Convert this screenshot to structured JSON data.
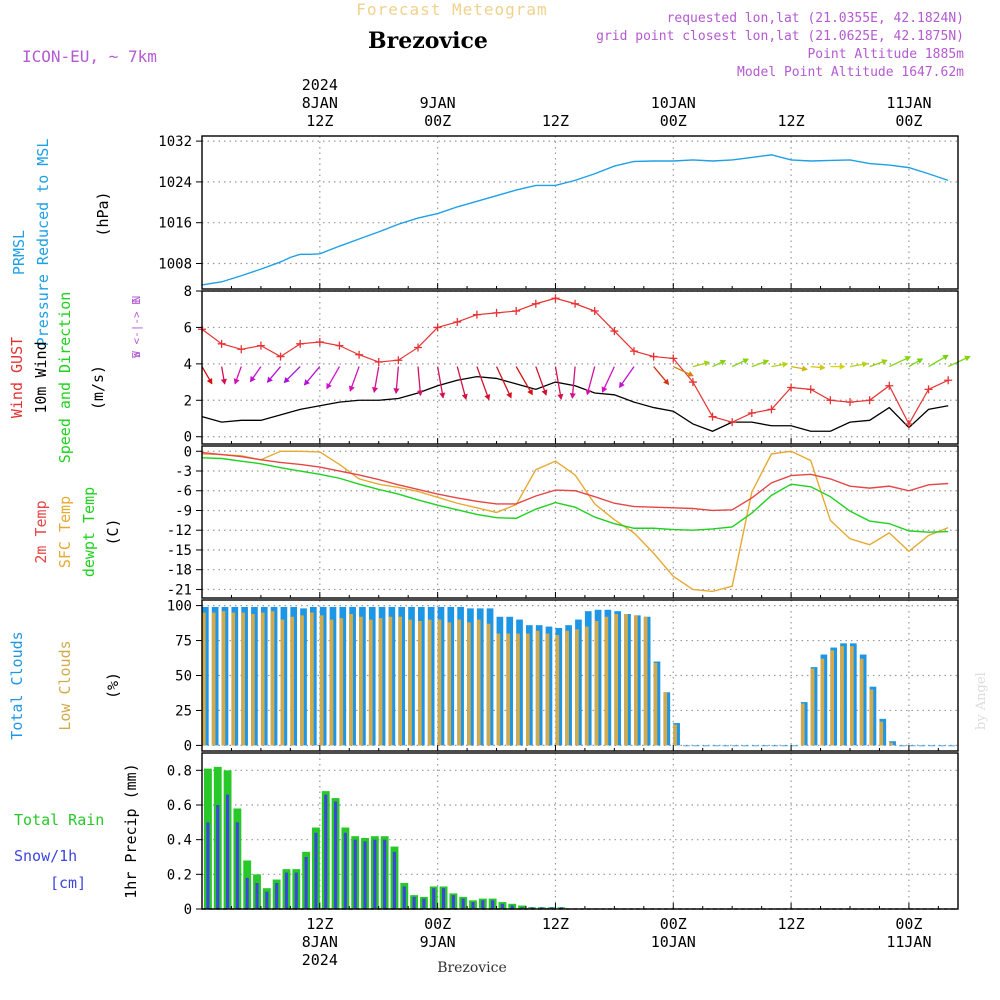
{
  "header": {
    "title": "Forecast Meteogram",
    "station": "Brezovice",
    "model": "ICON-EU, ~ 7km",
    "requested": "requested lon,lat (21.0355E, 42.1824N)",
    "gridpoint": "grid point closest lon,lat (21.0625E, 42.1875N)",
    "altitude": "Point Altitude 1885m",
    "model_altitude": "Model Point Altitude 1647.62m",
    "footer": "Brezovice",
    "credit": "by Angel"
  },
  "colors": {
    "pressure": "#1ea0e6",
    "gust": "#e63232",
    "wind": "#000000",
    "temp": "#e64646",
    "sfc": "#e6aa32",
    "dewpt": "#1ed21e",
    "total_clouds": "#1e96e6",
    "low_clouds": "#d2aa4b",
    "rain": "#28c828",
    "snow": "#3c46dc",
    "purple": "#b45ad2"
  },
  "time_axis": {
    "top_labels": [
      {
        "t": 12,
        "lines": [
          "2024",
          "8JAN",
          "12Z"
        ]
      },
      {
        "t": 24,
        "lines": [
          "9JAN",
          "00Z"
        ]
      },
      {
        "t": 36,
        "lines": [
          "12Z"
        ]
      },
      {
        "t": 48,
        "lines": [
          "10JAN",
          "00Z"
        ]
      },
      {
        "t": 60,
        "lines": [
          "12Z"
        ]
      },
      {
        "t": 72,
        "lines": [
          "11JAN",
          "00Z"
        ]
      }
    ],
    "bottom_labels": [
      {
        "t": 12,
        "lines": [
          "12Z",
          "8JAN",
          "2024"
        ]
      },
      {
        "t": 24,
        "lines": [
          "00Z",
          "9JAN"
        ]
      },
      {
        "t": 36,
        "lines": [
          "12Z"
        ]
      },
      {
        "t": 48,
        "lines": [
          "00Z",
          "10JAN"
        ]
      },
      {
        "t": 60,
        "lines": [
          "12Z"
        ]
      },
      {
        "t": 72,
        "lines": [
          "00Z",
          "11JAN"
        ]
      }
    ]
  },
  "chart_data": [
    {
      "type": "line",
      "id": "pressure",
      "ylabel": [
        "PRMSL",
        "Pressure Reduced to MSL",
        "(hPa)"
      ],
      "yticks": [
        1008,
        1016,
        1024,
        1032
      ],
      "ylim": [
        1003,
        1033
      ],
      "x": [
        0,
        2,
        4,
        6,
        8,
        9,
        10,
        11,
        12,
        14,
        16,
        18,
        20,
        22,
        24,
        26,
        28,
        30,
        32,
        34,
        36,
        38,
        40,
        42,
        44,
        46,
        48,
        50,
        52,
        54,
        56,
        58,
        60,
        62,
        64,
        66,
        68,
        70,
        72,
        74,
        76
      ],
      "series": [
        {
          "name": "PRMSL",
          "values": [
            1003.8,
            1004.4,
            1005.6,
            1006.9,
            1008.3,
            1009.2,
            1009.8,
            1009.8,
            1009.9,
            1011.4,
            1012.8,
            1014.2,
            1015.7,
            1016.9,
            1017.8,
            1019.1,
            1020.2,
            1021.3,
            1022.4,
            1023.3,
            1023.3,
            1024.3,
            1025.6,
            1027.1,
            1028.0,
            1028.1,
            1028.1,
            1028.3,
            1028.1,
            1028.3,
            1028.8,
            1029.3,
            1028.3,
            1028.1,
            1028.2,
            1028.3,
            1027.6,
            1027.3,
            1026.8,
            1025.6,
            1024.3
          ]
        }
      ]
    },
    {
      "type": "line",
      "id": "wind",
      "ylabel": [
        "Wind GUST",
        "10m Wind",
        "Speed and Direction",
        "(m/s)"
      ],
      "compass": [
        "N",
        "W <-|-> E",
        "S"
      ],
      "yticks": [
        0,
        2,
        4,
        6,
        8
      ],
      "ylim": [
        -0.4,
        8.0
      ],
      "x": [
        0,
        2,
        4,
        6,
        8,
        10,
        12,
        14,
        16,
        18,
        20,
        22,
        24,
        26,
        28,
        30,
        32,
        34,
        36,
        38,
        40,
        42,
        44,
        46,
        48,
        50,
        52,
        54,
        56,
        58,
        60,
        62,
        64,
        66,
        68,
        70,
        72,
        74,
        76
      ],
      "series": [
        {
          "name": "Wind GUST",
          "values": [
            5.9,
            5.1,
            4.8,
            5.0,
            4.4,
            5.1,
            5.2,
            5.0,
            4.5,
            4.1,
            4.2,
            4.9,
            6.0,
            6.3,
            6.7,
            6.8,
            6.9,
            7.3,
            7.6,
            7.3,
            6.9,
            5.8,
            4.7,
            4.4,
            4.3,
            3.0,
            1.1,
            0.8,
            1.3,
            1.5,
            2.7,
            2.6,
            2.0,
            1.9,
            2.0,
            2.8,
            0.7,
            2.6,
            3.1
          ]
        },
        {
          "name": "10m Wind",
          "values": [
            1.1,
            0.8,
            0.9,
            0.9,
            1.2,
            1.5,
            1.7,
            1.9,
            2.0,
            2.0,
            2.1,
            2.4,
            2.8,
            3.1,
            3.3,
            3.2,
            2.9,
            2.6,
            3.0,
            2.8,
            2.4,
            2.3,
            1.9,
            1.6,
            1.4,
            0.7,
            0.3,
            0.8,
            0.8,
            0.6,
            0.6,
            0.3,
            0.3,
            0.8,
            0.9,
            1.6,
            0.5,
            1.5,
            1.7
          ]
        }
      ],
      "arrows": {
        "x": [
          0,
          2,
          4,
          6,
          8,
          10,
          12,
          14,
          16,
          18,
          20,
          22,
          24,
          26,
          28,
          30,
          32,
          34,
          36,
          38,
          40,
          42,
          44,
          46,
          48,
          50,
          52,
          54,
          56,
          58,
          60,
          62,
          64,
          66,
          68,
          70,
          72,
          74,
          76
        ],
        "speed": [
          1.1,
          0.8,
          0.9,
          0.9,
          1.2,
          1.5,
          1.7,
          1.9,
          2.0,
          2.0,
          2.1,
          2.4,
          2.8,
          3.1,
          3.3,
          3.2,
          2.9,
          2.6,
          3.0,
          2.8,
          2.4,
          2.3,
          1.9,
          1.6,
          1.4,
          0.7,
          0.3,
          0.8,
          0.8,
          0.6,
          0.6,
          0.3,
          0.3,
          0.8,
          0.9,
          1.6,
          0.5,
          1.5,
          1.7
        ],
        "to_dir_deg": [
          150,
          170,
          200,
          215,
          220,
          225,
          220,
          210,
          200,
          190,
          185,
          175,
          170,
          165,
          160,
          155,
          150,
          160,
          170,
          185,
          195,
          205,
          215,
          140,
          115,
          75,
          65,
          65,
          70,
          80,
          100,
          95,
          90,
          80,
          70,
          65,
          60,
          60,
          65
        ]
      }
    },
    {
      "type": "line",
      "id": "temperature",
      "ylabel": [
        "2m Temp",
        "SFC Temp",
        "dewpt Temp",
        "(C)"
      ],
      "yticks": [
        0,
        -3,
        -6,
        -9,
        -12,
        -15,
        -18,
        -21
      ],
      "ylim": [
        -22.3,
        0.8
      ],
      "x": [
        0,
        2,
        4,
        6,
        8,
        10,
        12,
        14,
        16,
        18,
        20,
        22,
        24,
        26,
        28,
        30,
        32,
        34,
        36,
        38,
        40,
        42,
        44,
        46,
        48,
        50,
        52,
        54,
        56,
        58,
        60,
        62,
        64,
        66,
        68,
        70,
        72,
        74,
        76
      ],
      "series": [
        {
          "name": "2m Temp",
          "values": [
            -0.2,
            -0.5,
            -0.8,
            -1.3,
            -1.7,
            -2.0,
            -2.4,
            -3.0,
            -3.6,
            -4.3,
            -5.1,
            -5.8,
            -6.5,
            -7.1,
            -7.6,
            -8.0,
            -8.0,
            -6.8,
            -5.9,
            -6.0,
            -6.9,
            -7.9,
            -8.4,
            -8.5,
            -8.6,
            -8.7,
            -9.0,
            -8.9,
            -7.1,
            -4.8,
            -3.7,
            -3.5,
            -4.2,
            -5.3,
            -5.6,
            -5.3,
            -6.0,
            -5.1,
            -4.9
          ]
        },
        {
          "name": "SFC Temp",
          "values": [
            -0.4,
            -0.5,
            -0.7,
            -1.3,
            0.0,
            0.0,
            -0.1,
            -2.0,
            -4.2,
            -5.0,
            -5.5,
            -6.1,
            -7.0,
            -7.9,
            -8.6,
            -9.3,
            -8.1,
            -2.8,
            -1.5,
            -3.6,
            -8.0,
            -10.4,
            -12.4,
            -15.5,
            -19.0,
            -21.0,
            -21.3,
            -20.5,
            -6.2,
            -0.4,
            0.0,
            -1.4,
            -10.5,
            -13.3,
            -14.2,
            -12.4,
            -15.2,
            -12.8,
            -11.6
          ]
        },
        {
          "name": "dewpt Temp",
          "values": [
            -1.0,
            -1.1,
            -1.5,
            -1.9,
            -2.5,
            -3.0,
            -3.5,
            -4.1,
            -5.0,
            -5.8,
            -6.5,
            -7.4,
            -8.2,
            -8.9,
            -9.6,
            -10.1,
            -10.2,
            -8.8,
            -7.8,
            -8.5,
            -10.0,
            -11.0,
            -11.7,
            -11.7,
            -11.9,
            -12.0,
            -11.8,
            -11.5,
            -9.4,
            -6.7,
            -5.0,
            -5.4,
            -6.9,
            -9.1,
            -10.6,
            -11.0,
            -12.1,
            -12.3,
            -12.2
          ]
        }
      ]
    },
    {
      "type": "bar",
      "id": "clouds",
      "ylabel": [
        "Total Clouds",
        "Low Clouds",
        "(%)"
      ],
      "yticks": [
        0,
        25,
        50,
        75,
        100
      ],
      "ylim": [
        -4,
        104
      ],
      "x_start": 0,
      "x_step": 1,
      "series": [
        {
          "name": "Total Clouds",
          "values": [
            99,
            99,
            99,
            99,
            99,
            99,
            99,
            99,
            99,
            99,
            98,
            99,
            99,
            99,
            99,
            99,
            99,
            99,
            99,
            99,
            99,
            99,
            99,
            99,
            99,
            99,
            99,
            98,
            98,
            98,
            92,
            92,
            90,
            86,
            86,
            85,
            84,
            86,
            90,
            96,
            97,
            97,
            96,
            94,
            93,
            92,
            60,
            38,
            16,
            0,
            0,
            0,
            0,
            0,
            0,
            0,
            0,
            0,
            0,
            0,
            0,
            31,
            56,
            65,
            70,
            73,
            73,
            65,
            42,
            19,
            3,
            0,
            0,
            0,
            0,
            0,
            0
          ]
        },
        {
          "name": "Low Clouds",
          "values": [
            95,
            95,
            96,
            95,
            95,
            94,
            95,
            96,
            90,
            92,
            93,
            95,
            93,
            90,
            91,
            94,
            92,
            90,
            91,
            92,
            92,
            90,
            89,
            90,
            90,
            88,
            90,
            88,
            90,
            87,
            80,
            80,
            80,
            80,
            82,
            80,
            79,
            82,
            83,
            85,
            89,
            92,
            94,
            94,
            93,
            92,
            59,
            38,
            15,
            0,
            0,
            0,
            0,
            0,
            0,
            0,
            0,
            0,
            0,
            0,
            0,
            30,
            55,
            62,
            68,
            71,
            71,
            62,
            40,
            17,
            2,
            0,
            0,
            0,
            0,
            0,
            0
          ]
        }
      ]
    },
    {
      "type": "bar",
      "id": "precip",
      "ylabel": [
        "1hr Precip (mm)"
      ],
      "legend": [
        "Total  Rain",
        "Snow/1h",
        "[cm]"
      ],
      "yticks": [
        0,
        0.2,
        0.4,
        0.6,
        0.8
      ],
      "yticklabels": [
        "0",
        "0.2",
        "0.4",
        "0.6",
        "0.8"
      ],
      "ylim": [
        0,
        0.9
      ],
      "x_start": 0,
      "x_step": 1,
      "series": [
        {
          "name": "Total Rain",
          "values": [
            0.81,
            0.82,
            0.8,
            0.58,
            0.28,
            0.2,
            0.12,
            0.17,
            0.23,
            0.23,
            0.33,
            0.47,
            0.68,
            0.64,
            0.47,
            0.42,
            0.41,
            0.42,
            0.42,
            0.36,
            0.15,
            0.08,
            0.07,
            0.13,
            0.13,
            0.09,
            0.07,
            0.05,
            0.06,
            0.06,
            0.04,
            0.03,
            0.02,
            0.01,
            0.01,
            0.01,
            0.01
          ]
        },
        {
          "name": "Snow/1h",
          "values": [
            0.5,
            0.6,
            0.66,
            0.5,
            0.18,
            0.15,
            0.1,
            0.15,
            0.21,
            0.21,
            0.3,
            0.44,
            0.66,
            0.62,
            0.44,
            0.4,
            0.39,
            0.4,
            0.4,
            0.33,
            0.13,
            0.07,
            0.06,
            0.12,
            0.12,
            0.08,
            0.06,
            0.04,
            0.05,
            0.05,
            0.03,
            0.02,
            0.01,
            0.01,
            0.01,
            0.01,
            0.01
          ]
        }
      ]
    }
  ]
}
